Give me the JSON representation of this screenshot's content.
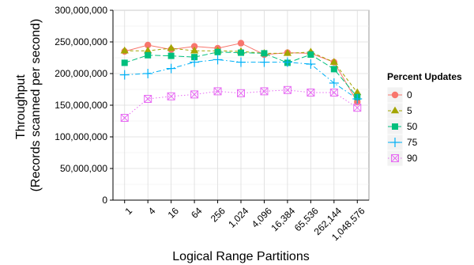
{
  "chart_data": {
    "type": "line",
    "xlabel": "Logical Range Partitions",
    "ylabel_lines": [
      "Throughput",
      "(Records scanned per second)"
    ],
    "categories": [
      "1",
      "4",
      "16",
      "64",
      "256",
      "1,024",
      "4,096",
      "16,384",
      "65,536",
      "262,144",
      "1,048,576"
    ],
    "y_ticks": [
      "0",
      "50,000,000",
      "100,000,000",
      "150,000,000",
      "200,000,000",
      "250,000,000",
      "300,000,000"
    ],
    "ylim": [
      0,
      300000000
    ],
    "grid": true,
    "legend": {
      "title": "Percent Updates",
      "placement": "right"
    },
    "series": [
      {
        "name": "0",
        "color": "#f8766d",
        "marker": "circle",
        "dash": "solid",
        "values": [
          235000000,
          245000000,
          238000000,
          243000000,
          240000000,
          248000000,
          230000000,
          233000000,
          232000000,
          218000000,
          155000000
        ]
      },
      {
        "name": "5",
        "color": "#a3a500",
        "marker": "triangle",
        "dash": "dashed",
        "values": [
          236000000,
          236000000,
          240000000,
          236000000,
          236000000,
          235000000,
          232000000,
          232000000,
          234000000,
          218000000,
          170000000
        ]
      },
      {
        "name": "50",
        "color": "#00bf7d",
        "marker": "square",
        "dash": "longdash",
        "values": [
          217000000,
          229000000,
          228000000,
          226000000,
          234000000,
          233000000,
          232000000,
          217000000,
          230000000,
          207000000,
          163000000
        ]
      },
      {
        "name": "75",
        "color": "#00b0f6",
        "marker": "plus",
        "dash": "dashdot",
        "values": [
          198000000,
          200000000,
          208000000,
          218000000,
          222000000,
          218000000,
          218000000,
          218000000,
          215000000,
          185000000,
          160000000
        ]
      },
      {
        "name": "90",
        "color": "#e76bf3",
        "marker": "boxx",
        "dash": "dotted",
        "values": [
          130000000,
          160000000,
          164000000,
          167000000,
          172000000,
          169000000,
          172000000,
          174000000,
          170000000,
          170000000,
          146000000
        ]
      }
    ]
  }
}
